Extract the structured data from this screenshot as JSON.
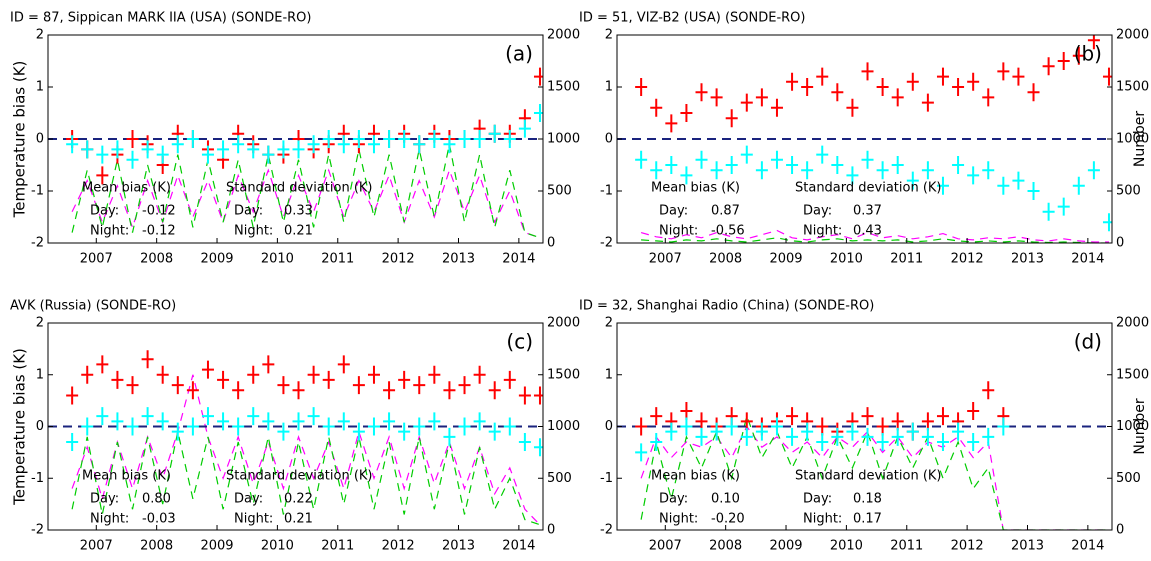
{
  "chart_data": [
    {
      "type": "line",
      "title": "ID =  87, Sippican MARK IIA (USA) (SONDE-RO)",
      "panel_label": "(a)",
      "y_label": "Temperature bias (K)",
      "x": [
        2006.6,
        2006.85,
        2007.1,
        2007.35,
        2007.6,
        2007.85,
        2008.1,
        2008.35,
        2008.6,
        2008.85,
        2009.1,
        2009.35,
        2009.6,
        2009.85,
        2010.1,
        2010.35,
        2010.6,
        2010.85,
        2011.1,
        2011.35,
        2011.6,
        2011.85,
        2012.1,
        2012.35,
        2012.6,
        2012.85,
        2013.1,
        2013.35,
        2013.6,
        2013.85,
        2014.1,
        2014.35
      ],
      "xlim": [
        2006.2,
        2014.4
      ],
      "xticks": [
        2007,
        2008,
        2009,
        2010,
        2011,
        2012,
        2013,
        2014
      ],
      "ylim": [
        -2,
        2
      ],
      "yticks": [
        -2,
        -1,
        0,
        1,
        2
      ],
      "y2lim": [
        0,
        2000
      ],
      "y2ticks": [
        0,
        500,
        1000,
        1500,
        2000
      ],
      "hline": 0,
      "series": [
        {
          "color": "#ff0000",
          "marker": "plus",
          "values": [
            0.0,
            -0.2,
            -0.7,
            -0.3,
            0.0,
            -0.1,
            -0.5,
            0.1,
            0.0,
            -0.2,
            -0.4,
            0.1,
            -0.1,
            -0.3,
            -0.3,
            0.0,
            -0.2,
            -0.1,
            0.1,
            -0.1,
            0.1,
            0.0,
            0.1,
            -0.1,
            0.1,
            0.0,
            0.0,
            0.2,
            0.1,
            0.1,
            0.4,
            1.2
          ]
        },
        {
          "color": "#00ffff",
          "marker": "plus",
          "values": [
            -0.1,
            -0.2,
            -0.3,
            -0.2,
            -0.4,
            -0.2,
            -0.3,
            -0.1,
            0.0,
            -0.3,
            -0.2,
            -0.1,
            -0.2,
            -0.3,
            -0.2,
            -0.2,
            -0.1,
            0.0,
            -0.1,
            0.0,
            -0.1,
            0.0,
            0.0,
            -0.1,
            0.0,
            -0.1,
            0.0,
            0.0,
            0.1,
            0.0,
            0.2,
            0.5
          ]
        },
        {
          "color": "#ff00ff",
          "style": "dashed",
          "axis": "y2",
          "values": [
            300,
            600,
            200,
            550,
            150,
            600,
            200,
            650,
            250,
            600,
            200,
            650,
            300,
            700,
            250,
            650,
            300,
            700,
            250,
            600,
            300,
            650,
            200,
            600,
            250,
            700,
            300,
            650,
            200,
            500,
            100,
            50
          ]
        },
        {
          "color": "#00cc00",
          "style": "dashed",
          "axis": "y2",
          "values": [
            100,
            700,
            150,
            800,
            100,
            750,
            200,
            850,
            150,
            800,
            200,
            800,
            150,
            850,
            200,
            800,
            150,
            850,
            200,
            900,
            250,
            850,
            200,
            900,
            250,
            950,
            200,
            850,
            150,
            700,
            100,
            50
          ]
        }
      ],
      "stats": {
        "mean_label": "Mean bias (K)",
        "sd_label": "Standard deviation (K)",
        "day_label": "Day:",
        "night_label": "Night:",
        "mean_day": "-0.12",
        "mean_night": "-0.12",
        "sd_day": "0.33",
        "sd_night": "0.21"
      }
    },
    {
      "type": "line",
      "title": "ID = 51, VIZ-B2 (USA) (SONDE-RO)",
      "panel_label": "(b)",
      "y2_label": "Number",
      "x": [
        2006.6,
        2006.85,
        2007.1,
        2007.35,
        2007.6,
        2007.85,
        2008.1,
        2008.35,
        2008.6,
        2008.85,
        2009.1,
        2009.35,
        2009.6,
        2009.85,
        2010.1,
        2010.35,
        2010.6,
        2010.85,
        2011.1,
        2011.35,
        2011.6,
        2011.85,
        2012.1,
        2012.35,
        2012.6,
        2012.85,
        2013.1,
        2013.35,
        2013.6,
        2013.85,
        2014.1,
        2014.35
      ],
      "xlim": [
        2006.2,
        2014.4
      ],
      "xticks": [
        2007,
        2008,
        2009,
        2010,
        2011,
        2012,
        2013,
        2014
      ],
      "ylim": [
        -2,
        2
      ],
      "yticks": [
        -2,
        -1,
        0,
        1,
        2
      ],
      "y2lim": [
        0,
        2000
      ],
      "y2ticks": [
        0,
        500,
        1000,
        1500,
        2000
      ],
      "hline": 0,
      "series": [
        {
          "color": "#ff0000",
          "marker": "plus",
          "values": [
            1.0,
            0.6,
            0.3,
            0.5,
            0.9,
            0.8,
            0.4,
            0.7,
            0.8,
            0.6,
            1.1,
            1.0,
            1.2,
            0.9,
            0.6,
            1.3,
            1.0,
            0.8,
            1.1,
            0.7,
            1.2,
            1.0,
            1.1,
            0.8,
            1.3,
            1.2,
            0.9,
            1.4,
            1.5,
            1.6,
            1.9,
            1.2
          ]
        },
        {
          "color": "#00ffff",
          "marker": "plus",
          "values": [
            -0.4,
            -0.6,
            -0.5,
            -0.7,
            -0.4,
            -0.6,
            -0.5,
            -0.3,
            -0.6,
            -0.4,
            -0.5,
            -0.6,
            -0.3,
            -0.5,
            -0.7,
            -0.4,
            -0.6,
            -0.5,
            -0.8,
            -0.6,
            -0.9,
            -0.5,
            -0.7,
            -0.6,
            -0.9,
            -0.8,
            -1.0,
            -1.4,
            -1.3,
            -0.9,
            -0.6,
            -1.6
          ]
        },
        {
          "color": "#ff00ff",
          "style": "dashed",
          "axis": "y2",
          "values": [
            100,
            60,
            40,
            80,
            50,
            100,
            60,
            40,
            80,
            120,
            50,
            30,
            60,
            80,
            40,
            100,
            50,
            70,
            40,
            60,
            90,
            40,
            30,
            50,
            40,
            60,
            30,
            20,
            40,
            20,
            10,
            10
          ]
        },
        {
          "color": "#00cc00",
          "style": "dashed",
          "axis": "y2",
          "values": [
            30,
            20,
            10,
            30,
            20,
            40,
            20,
            10,
            30,
            50,
            20,
            10,
            30,
            40,
            20,
            30,
            20,
            30,
            10,
            20,
            40,
            20,
            10,
            20,
            10,
            20,
            10,
            5,
            10,
            5,
            0,
            0
          ]
        }
      ],
      "stats": {
        "mean_label": "Mean bias (K)",
        "sd_label": "Standard deviation (K)",
        "day_label": "Day:",
        "night_label": "Night:",
        "mean_day": "0.87",
        "mean_night": "-0.56",
        "sd_day": "0.37",
        "sd_night": "0.43"
      }
    },
    {
      "type": "line",
      "title": "AVK (Russia) (SONDE-RO)",
      "panel_label": "(c)",
      "y_label": "Temperature bias (K)",
      "x": [
        2006.6,
        2006.85,
        2007.1,
        2007.35,
        2007.6,
        2007.85,
        2008.1,
        2008.35,
        2008.6,
        2008.85,
        2009.1,
        2009.35,
        2009.6,
        2009.85,
        2010.1,
        2010.35,
        2010.6,
        2010.85,
        2011.1,
        2011.35,
        2011.6,
        2011.85,
        2012.1,
        2012.35,
        2012.6,
        2012.85,
        2013.1,
        2013.35,
        2013.6,
        2013.85,
        2014.1,
        2014.35
      ],
      "xlim": [
        2006.2,
        2014.4
      ],
      "xticks": [
        2007,
        2008,
        2009,
        2010,
        2011,
        2012,
        2013,
        2014
      ],
      "ylim": [
        -2,
        2
      ],
      "yticks": [
        -2,
        -1,
        0,
        1,
        2
      ],
      "y2lim": [
        0,
        2000
      ],
      "y2ticks": [
        0,
        500,
        1000,
        1500,
        2000
      ],
      "hline": 0,
      "series": [
        {
          "color": "#ff0000",
          "marker": "plus",
          "values": [
            0.6,
            1.0,
            1.2,
            0.9,
            0.8,
            1.3,
            1.0,
            0.8,
            0.7,
            1.1,
            0.9,
            0.7,
            1.0,
            1.2,
            0.8,
            0.7,
            1.0,
            0.9,
            1.2,
            0.8,
            1.0,
            0.7,
            0.9,
            0.8,
            1.0,
            0.7,
            0.8,
            1.0,
            0.7,
            0.9,
            0.6,
            0.6
          ]
        },
        {
          "color": "#00ffff",
          "marker": "plus",
          "values": [
            -0.3,
            0.0,
            0.2,
            0.1,
            0.0,
            0.2,
            0.1,
            -0.1,
            0.0,
            0.2,
            0.1,
            0.0,
            0.2,
            0.1,
            -0.1,
            0.1,
            0.2,
            0.0,
            0.1,
            -0.1,
            0.0,
            0.1,
            -0.1,
            0.0,
            0.1,
            -0.2,
            0.0,
            0.1,
            -0.1,
            0.0,
            -0.3,
            -0.4
          ]
        },
        {
          "color": "#ff00ff",
          "style": "dashed",
          "axis": "y2",
          "values": [
            400,
            800,
            300,
            850,
            400,
            900,
            500,
            950,
            1500,
            900,
            500,
            900,
            450,
            850,
            400,
            900,
            500,
            850,
            400,
            950,
            500,
            900,
            400,
            900,
            450,
            850,
            400,
            800,
            350,
            600,
            200,
            50
          ]
        },
        {
          "color": "#00cc00",
          "style": "dashed",
          "axis": "y2",
          "values": [
            200,
            900,
            150,
            850,
            200,
            900,
            250,
            950,
            300,
            900,
            200,
            850,
            250,
            900,
            150,
            850,
            200,
            900,
            250,
            900,
            200,
            850,
            150,
            900,
            200,
            850,
            150,
            800,
            200,
            500,
            100,
            50
          ]
        }
      ],
      "stats": {
        "mean_label": "Mean bias (K)",
        "sd_label": "Standard deviation (K)",
        "day_label": "Day:",
        "night_label": "Night:",
        "mean_day": "0.80",
        "mean_night": "-0.03",
        "sd_day": "0.22",
        "sd_night": "0.21"
      }
    },
    {
      "type": "line",
      "title": "ID = 32, Shanghai Radio (China) (SONDE-RO)",
      "panel_label": "(d)",
      "y2_label": "Number",
      "x": [
        2006.6,
        2006.85,
        2007.1,
        2007.35,
        2007.6,
        2007.85,
        2008.1,
        2008.35,
        2008.6,
        2008.85,
        2009.1,
        2009.35,
        2009.6,
        2009.85,
        2010.1,
        2010.35,
        2010.6,
        2010.85,
        2011.1,
        2011.35,
        2011.6,
        2011.85,
        2012.1,
        2012.35,
        2012.6,
        2012.85,
        2013.1,
        2013.35,
        2013.6,
        2013.85,
        2014.1,
        2014.35
      ],
      "xlim": [
        2006.2,
        2014.4
      ],
      "xticks": [
        2007,
        2008,
        2009,
        2010,
        2011,
        2012,
        2013,
        2014
      ],
      "ylim": [
        -2,
        2
      ],
      "yticks": [
        -2,
        -1,
        0,
        1,
        2
      ],
      "y2lim": [
        0,
        2000
      ],
      "y2ticks": [
        0,
        500,
        1000,
        1500,
        2000
      ],
      "hline": 0,
      "series": [
        {
          "color": "#ff0000",
          "marker": "plus",
          "values": [
            0.0,
            0.2,
            0.1,
            0.3,
            0.1,
            0.0,
            0.2,
            0.1,
            0.0,
            0.1,
            0.2,
            0.1,
            0.0,
            -0.1,
            0.1,
            0.2,
            0.0,
            0.1,
            -0.1,
            0.1,
            0.2,
            0.1,
            0.3,
            0.7,
            0.2,
            null,
            null,
            null,
            null,
            null,
            null,
            null
          ]
        },
        {
          "color": "#00ffff",
          "marker": "plus",
          "values": [
            -0.5,
            -0.3,
            -0.1,
            0.0,
            -0.2,
            -0.1,
            0.0,
            -0.2,
            -0.1,
            0.0,
            -0.2,
            -0.1,
            -0.3,
            -0.2,
            -0.1,
            -0.2,
            -0.3,
            -0.2,
            -0.1,
            -0.2,
            -0.3,
            -0.1,
            -0.3,
            -0.2,
            0.0,
            null,
            null,
            null,
            null,
            null,
            null,
            null
          ]
        },
        {
          "color": "#ff00ff",
          "style": "dashed",
          "axis": "y2",
          "values": [
            500,
            900,
            700,
            850,
            800,
            900,
            700,
            1000,
            800,
            900,
            750,
            850,
            700,
            900,
            800,
            950,
            750,
            900,
            700,
            850,
            800,
            900,
            700,
            850,
            0,
            0,
            0,
            0,
            0,
            0,
            0,
            0
          ]
        },
        {
          "color": "#00cc00",
          "style": "dashed",
          "axis": "y2",
          "values": [
            100,
            850,
            300,
            900,
            600,
            950,
            500,
            1100,
            700,
            950,
            600,
            900,
            500,
            900,
            600,
            950,
            500,
            900,
            600,
            900,
            500,
            850,
            400,
            600,
            0,
            0,
            0,
            0,
            0,
            0,
            0,
            0
          ]
        }
      ],
      "stats": {
        "mean_label": "Mean bias (K)",
        "sd_label": "Standard deviation (K)",
        "day_label": "Day:",
        "night_label": "Night:",
        "mean_day": "0.10",
        "mean_night": "-0.20",
        "sd_day": "0.18",
        "sd_night": "0.17"
      }
    }
  ]
}
